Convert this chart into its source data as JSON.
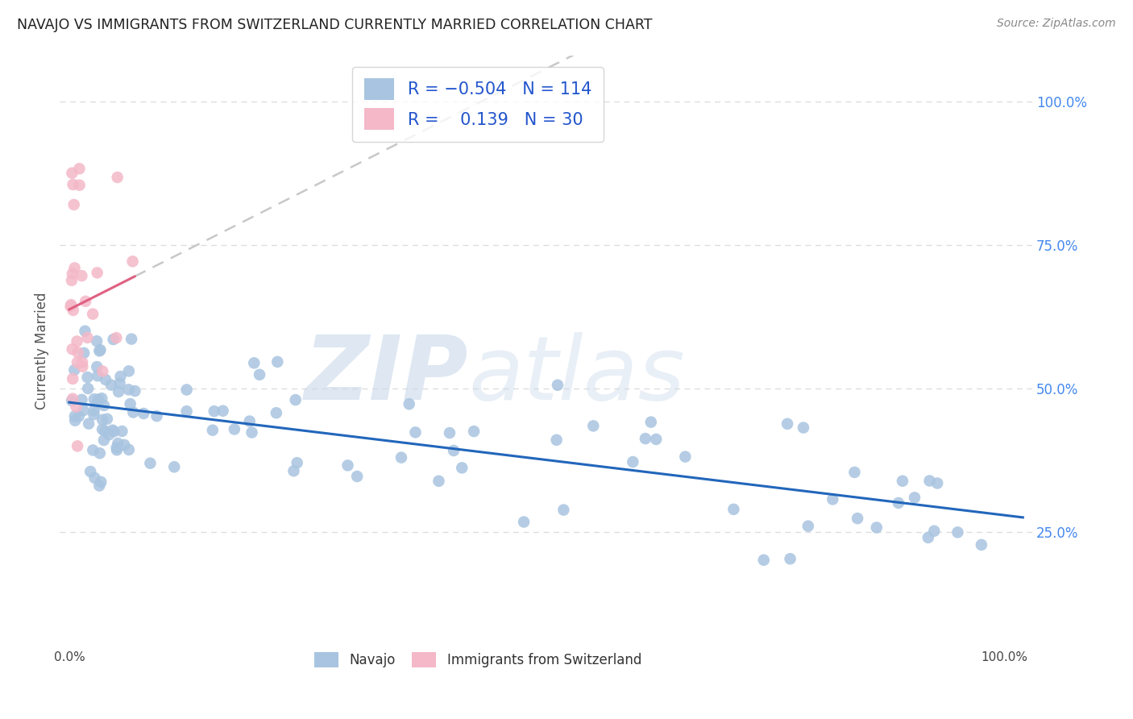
{
  "title": "NAVAJO VS IMMIGRANTS FROM SWITZERLAND CURRENTLY MARRIED CORRELATION CHART",
  "source": "Source: ZipAtlas.com",
  "ylabel": "Currently Married",
  "navajo_color": "#a8c4e0",
  "switzerland_color": "#f4b8c8",
  "navajo_line_color": "#2266bb",
  "switzerland_line_color": "#e06080",
  "dashed_line_color": "#c8c8c8",
  "background_color": "#ffffff",
  "grid_color": "#dddddd",
  "watermark_color": "#c8d8ea"
}
